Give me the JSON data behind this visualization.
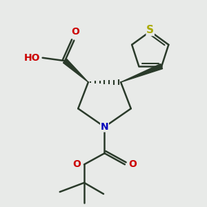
{
  "background_color": "#e8eae8",
  "bond_color": "#2a3a2a",
  "N_color": "#0000bb",
  "O_color": "#cc0000",
  "S_color": "#aaaa00",
  "line_width": 1.8,
  "fig_size": [
    3.0,
    3.0
  ],
  "dpi": 100,
  "xlim": [
    0,
    10
  ],
  "ylim": [
    0,
    10
  ]
}
